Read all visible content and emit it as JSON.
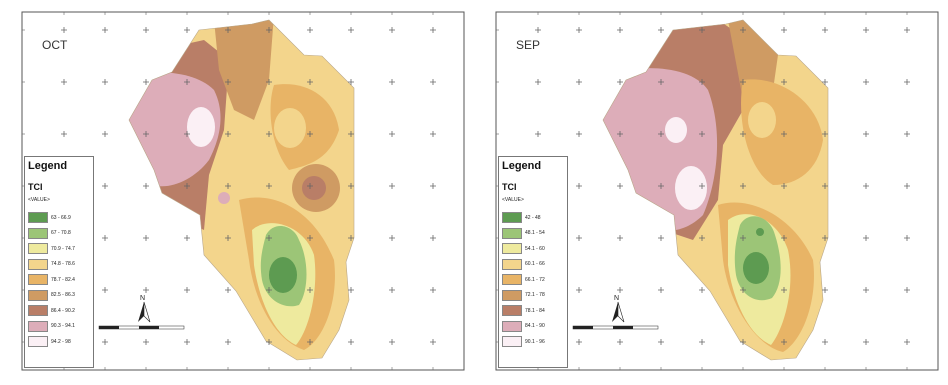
{
  "panels": [
    {
      "month": "OCT",
      "legend": {
        "title": "Legend",
        "variable": "TCI",
        "value_label": "<VALUE>",
        "classes": [
          {
            "label": "63 - 66.9",
            "color": "#5d9b51"
          },
          {
            "label": "67 - 70.8",
            "color": "#9cc577"
          },
          {
            "label": "70.9 - 74.7",
            "color": "#eeea9e"
          },
          {
            "label": "74.8 - 78.6",
            "color": "#f3d58c"
          },
          {
            "label": "78.7 - 82.4",
            "color": "#e8b466"
          },
          {
            "label": "82.5 - 86.3",
            "color": "#cf9b63"
          },
          {
            "label": "86.4 - 90.2",
            "color": "#b97e67"
          },
          {
            "label": "90.3 - 94.1",
            "color": "#ddadb9"
          },
          {
            "label": "94.2 - 98",
            "color": "#fbf0f5"
          }
        ]
      }
    },
    {
      "month": "SEP",
      "legend": {
        "title": "Legend",
        "variable": "TCI",
        "value_label": "<VALUE>",
        "classes": [
          {
            "label": "42 - 48",
            "color": "#5d9b51"
          },
          {
            "label": "48.1 - 54",
            "color": "#9cc577"
          },
          {
            "label": "54.1 - 60",
            "color": "#eeea9e"
          },
          {
            "label": "60.1 - 66",
            "color": "#f3d58c"
          },
          {
            "label": "66.1 - 72",
            "color": "#e8b466"
          },
          {
            "label": "72.1 - 78",
            "color": "#cf9b63"
          },
          {
            "label": "78.1 - 84",
            "color": "#b97e67"
          },
          {
            "label": "84.1 - 90",
            "color": "#ddadb9"
          },
          {
            "label": "90.1 - 96",
            "color": "#fbf0f5"
          }
        ]
      }
    }
  ],
  "north_label": "N",
  "colors": {
    "frame": "#555555",
    "graticule": "#666666"
  }
}
